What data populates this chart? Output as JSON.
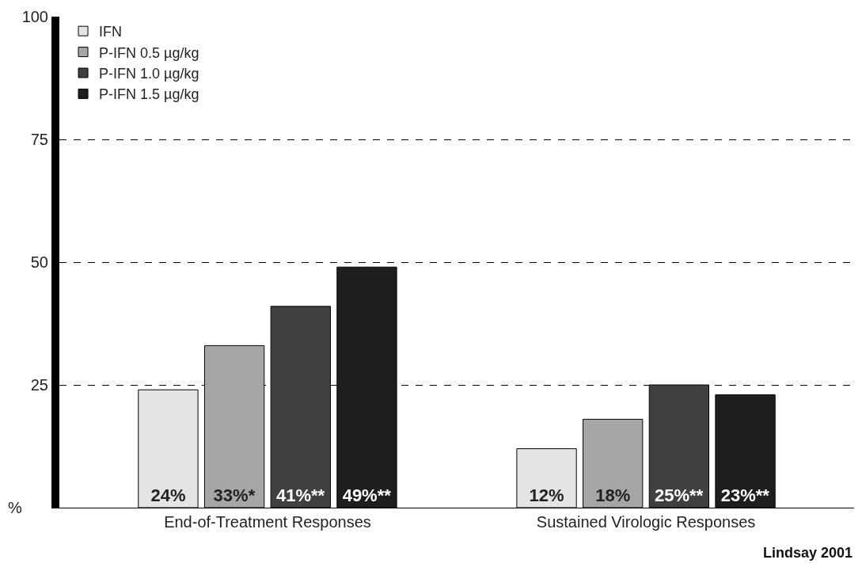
{
  "chart_data": {
    "type": "bar",
    "categories": [
      "End-of-Treatment Responses",
      "Sustained Virologic Responses"
    ],
    "series": [
      {
        "name": "IFN",
        "color": "#e4e4e4",
        "values": [
          24,
          12
        ],
        "value_labels": [
          "24%",
          "12%"
        ]
      },
      {
        "name": "P-IFN 0.5 µg/kg",
        "color": "#a6a6a6",
        "values": [
          33,
          18
        ],
        "value_labels": [
          "33%*",
          "18%"
        ]
      },
      {
        "name": "P-IFN 1.0 µg/kg",
        "color": "#404040",
        "values": [
          41,
          25
        ],
        "value_labels": [
          "41%**",
          "25%**"
        ]
      },
      {
        "name": "P-IFN 1.5 µg/kg",
        "color": "#1e1e1e",
        "values": [
          49,
          23
        ],
        "value_labels": [
          "49%**",
          "23%**"
        ]
      }
    ],
    "ylabel": "%",
    "ylim": [
      0,
      100
    ],
    "yticks": [
      25,
      50,
      75,
      100
    ],
    "grid": "y",
    "legend": "top left",
    "annotations": [
      "Lindsay 2001"
    ]
  }
}
